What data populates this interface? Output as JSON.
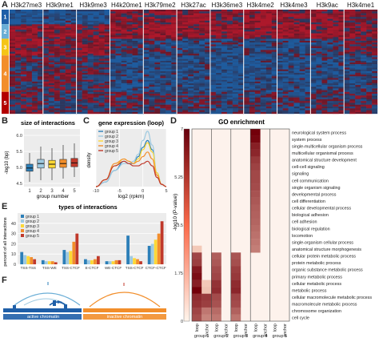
{
  "panel_letters": {
    "a": "A",
    "b": "B",
    "c": "C",
    "d": "D",
    "e": "E",
    "f": "F"
  },
  "colors": {
    "heatmap_high": "#b2182b",
    "heatmap_low": "#1d5fa3",
    "heatmap_mid": "#3a1a2a",
    "group1": "#2c7fb8",
    "group2": "#9ecae1",
    "group3": "#fdd835",
    "group4": "#f28e2b",
    "group5": "#c0392b",
    "go_fill": "#b30000",
    "active_chromatin": "#1f5fa8",
    "inactive_chromatin": "#f28e2b"
  },
  "heatmap": {
    "columns": [
      "H3k27me3",
      "H3k9me1",
      "H3k9me3",
      "H4k20me1",
      "H3k79me2",
      "H3k27ac",
      "H3k36me3",
      "H3k4me2",
      "H3k4me3",
      "H3k9ac",
      "H3k4me1"
    ],
    "groups": [
      "1",
      "2",
      "3",
      "4",
      "5"
    ],
    "group_colors": [
      "#1f5fa8",
      "#6baed6",
      "#f5c518",
      "#f28e2b",
      "#b30000"
    ],
    "group_fracs": [
      0.14,
      0.14,
      0.16,
      0.35,
      0.21
    ],
    "patterns": [
      [
        -0.9,
        -0.6,
        -0.8,
        0.2,
        0.4,
        0.5,
        0.3,
        0.6,
        0.5,
        0.4,
        0.3
      ],
      [
        0.4,
        0.5,
        0.3,
        0.6,
        0.7,
        0.6,
        0.6,
        0.6,
        0.7,
        0.5,
        0.4
      ],
      [
        0.5,
        0.2,
        0.4,
        -0.2,
        -0.3,
        -0.5,
        -0.4,
        -0.4,
        -0.5,
        -0.3,
        0.1
      ],
      [
        -0.2,
        0.1,
        -0.1,
        -0.6,
        -0.5,
        -0.6,
        -0.7,
        -0.6,
        -0.6,
        -0.5,
        -0.4
      ],
      [
        0.1,
        -0.2,
        0.0,
        -0.1,
        -0.2,
        -0.2,
        -0.3,
        -0.2,
        -0.3,
        -0.1,
        0.0
      ]
    ]
  },
  "panel_b": {
    "title": "size of interactions",
    "ylabel": "-log10 (bp)",
    "xlabel": "group number",
    "chart_data": {
      "type": "box",
      "categories": [
        "1",
        "2",
        "3",
        "4",
        "5"
      ],
      "ylim": [
        4.4,
        6.2
      ],
      "yticks": [
        "4.5",
        "5.0",
        "5.5",
        "6.0"
      ],
      "boxes": [
        {
          "min": 4.55,
          "q1": 4.88,
          "median": 4.98,
          "q3": 5.1,
          "max": 5.45
        },
        {
          "min": 4.6,
          "q1": 4.98,
          "median": 5.12,
          "q3": 5.25,
          "max": 5.65
        },
        {
          "min": 4.6,
          "q1": 4.98,
          "median": 5.1,
          "q3": 5.22,
          "max": 5.6
        },
        {
          "min": 4.65,
          "q1": 5.0,
          "median": 5.12,
          "q3": 5.25,
          "max": 5.7
        },
        {
          "min": 4.7,
          "q1": 5.02,
          "median": 5.14,
          "q3": 5.28,
          "max": 5.75
        }
      ]
    }
  },
  "panel_c": {
    "title": "gene expression (loop)",
    "ylabel": "density",
    "xlabel": "log2 (rpkm)",
    "legend": [
      "group 1",
      "group 2",
      "group 3",
      "group 4",
      "group 5"
    ],
    "chart_data": {
      "type": "line",
      "xlim": [
        -10,
        5
      ],
      "xticks": [
        "-10",
        "-5",
        "0",
        "5"
      ],
      "ylim": [
        0,
        0.25
      ],
      "x": [
        -10,
        -8,
        -6,
        -4,
        -3,
        -2,
        -1,
        0,
        1,
        2,
        3,
        4,
        5
      ],
      "series": [
        {
          "name": "group 1",
          "values": [
            0.0,
            0.02,
            0.07,
            0.11,
            0.1,
            0.1,
            0.13,
            0.17,
            0.2,
            0.16,
            0.06,
            0.01,
            0.0
          ]
        },
        {
          "name": "group 2",
          "values": [
            0.0,
            0.02,
            0.07,
            0.1,
            0.1,
            0.11,
            0.14,
            0.2,
            0.24,
            0.18,
            0.06,
            0.01,
            0.0
          ]
        },
        {
          "name": "group 3",
          "values": [
            0.0,
            0.03,
            0.09,
            0.12,
            0.11,
            0.1,
            0.12,
            0.16,
            0.19,
            0.15,
            0.06,
            0.01,
            0.0
          ]
        },
        {
          "name": "group 4",
          "values": [
            0.0,
            0.03,
            0.1,
            0.12,
            0.11,
            0.1,
            0.11,
            0.13,
            0.15,
            0.12,
            0.05,
            0.01,
            0.0
          ]
        },
        {
          "name": "group 5",
          "values": [
            0.0,
            0.03,
            0.09,
            0.11,
            0.1,
            0.09,
            0.09,
            0.1,
            0.11,
            0.09,
            0.04,
            0.01,
            0.0
          ]
        }
      ]
    }
  },
  "panel_d": {
    "title": "GO enrichment",
    "ylabel": "-log10 (P-value)",
    "yticks": [
      "0",
      "1.75",
      "3.5",
      "5.25",
      "7"
    ],
    "column_labels": [
      "loop",
      "anchor",
      "loop",
      "anchor",
      "loop",
      "anchor",
      "loop",
      "anchor",
      "loop",
      "anchor"
    ],
    "group_labels": [
      "group 1",
      "group 2",
      "group 3",
      "group 4",
      "group 5"
    ],
    "terms": [
      "neurological system process",
      "system process",
      "single-multicellular organism process",
      "multicellular organismal process",
      "anatomical structure development",
      "cell-cell signaling",
      "signaling",
      "cell communication",
      "single organism signaling",
      "developmental process",
      "cell differentiation",
      "cellular developmental process",
      "biological adhesion",
      "cell adhesion",
      "biological regulation",
      "locomotion",
      "single-organism cellular process",
      "anatomical structure morphogenesis",
      "cellular protein metabolic process",
      "protein metabolic process",
      "organic substance metabolic process",
      "primary metabolic process",
      "cellular metabolic process",
      "metabolic process",
      "cellular macromolecule metabolic process",
      "macromolecule metabolic process",
      "chromosome organization",
      "cell cycle"
    ],
    "chart_data": {
      "type": "heatmap",
      "ylim": [
        0,
        7
      ],
      "columns": [
        "group 1 loop",
        "group 1 anchor",
        "group 2 loop",
        "group 2 anchor",
        "group 3 loop",
        "group 3 anchor",
        "group 4 loop",
        "group 4 anchor",
        "group 5 loop",
        "group 5 anchor"
      ],
      "values": [
        [
          0,
          0,
          0,
          0,
          0,
          0,
          7.0,
          0,
          0,
          0
        ],
        [
          0,
          0,
          0,
          0,
          0,
          0,
          6.8,
          0,
          0,
          0
        ],
        [
          0,
          0,
          0,
          0,
          0,
          0,
          6.0,
          0,
          0,
          0
        ],
        [
          0,
          0,
          0,
          0,
          0,
          0,
          5.8,
          0,
          0,
          0
        ],
        [
          0,
          0,
          0,
          0,
          0,
          0,
          5.2,
          0,
          0,
          0
        ],
        [
          0,
          0,
          0,
          0,
          0,
          0,
          4.9,
          0,
          0,
          0
        ],
        [
          0,
          0,
          0,
          0,
          0,
          0,
          4.7,
          0,
          0,
          0
        ],
        [
          0,
          0,
          0,
          0,
          0,
          0,
          4.7,
          0,
          0,
          0
        ],
        [
          0,
          0,
          0,
          0,
          0,
          0,
          4.6,
          0,
          0,
          0
        ],
        [
          0,
          0,
          0,
          0,
          0,
          0,
          4.4,
          0,
          0,
          0
        ],
        [
          0,
          0,
          0,
          0,
          0,
          0,
          4.2,
          0,
          0,
          0
        ],
        [
          0,
          0,
          0,
          0,
          0,
          0,
          4.0,
          0,
          0,
          0
        ],
        [
          0,
          0,
          0,
          0,
          0,
          0,
          3.9,
          0,
          0,
          0
        ],
        [
          0,
          0,
          0,
          0,
          0,
          0,
          3.8,
          0,
          0,
          0
        ],
        [
          0,
          0,
          0,
          0,
          0,
          0,
          3.6,
          0,
          0,
          0
        ],
        [
          0,
          0,
          0,
          0,
          0,
          0,
          3.4,
          0,
          0,
          0
        ],
        [
          0,
          0,
          0,
          0,
          0,
          0,
          3.2,
          0,
          0,
          0
        ],
        [
          0.6,
          0,
          0,
          0,
          0,
          0,
          3.0,
          0,
          0,
          0
        ],
        [
          4.8,
          0,
          4.0,
          0,
          4.3,
          0,
          0,
          0,
          0,
          0
        ],
        [
          5.0,
          0,
          4.2,
          0,
          4.5,
          0,
          0,
          0,
          0,
          0
        ],
        [
          6.2,
          0,
          4.6,
          0,
          5.0,
          0,
          0,
          0,
          0,
          0
        ],
        [
          6.6,
          0,
          4.8,
          0,
          5.2,
          0,
          0,
          0,
          0,
          0
        ],
        [
          6.0,
          0.6,
          5.4,
          0,
          5.6,
          0,
          0,
          0,
          0,
          0
        ],
        [
          7.0,
          0.8,
          5.6,
          0,
          5.8,
          0,
          0,
          0,
          0,
          0
        ],
        [
          5.6,
          5.2,
          4.6,
          0,
          4.8,
          0,
          0,
          0,
          0,
          0
        ],
        [
          5.4,
          5.0,
          4.4,
          0,
          4.6,
          0,
          0,
          0,
          0,
          0
        ],
        [
          4.8,
          3.2,
          3.6,
          0,
          3.9,
          0,
          0,
          0,
          0,
          0
        ],
        [
          4.5,
          2.8,
          3.2,
          0,
          3.3,
          0,
          0,
          0,
          0,
          0
        ]
      ]
    }
  },
  "panel_e": {
    "title": "types of interactions",
    "ylabel": "percent of all interactions",
    "legend": [
      "group 1",
      "group 2",
      "group 3",
      "group 4",
      "group 5"
    ],
    "chart_data": {
      "type": "bar",
      "categories": [
        "TSS-TSS",
        "TSS-WE",
        "TSS-CTCF",
        "E-CTCF",
        "WE-CTCF",
        "TSS-CTCF",
        "CTCF-CTCF"
      ],
      "ylim": [
        0,
        50
      ],
      "yticks": [
        "0",
        "10",
        "20",
        "30",
        "40"
      ],
      "series": [
        {
          "name": "group 1",
          "values": [
            12,
            4,
            14,
            5,
            3,
            28,
            18
          ]
        },
        {
          "name": "group 2",
          "values": [
            9,
            3,
            12,
            4,
            3,
            8,
            20
          ]
        },
        {
          "name": "group 3",
          "values": [
            8,
            3,
            13,
            4,
            3,
            6,
            24
          ]
        },
        {
          "name": "group 4",
          "values": [
            7,
            3,
            22,
            5,
            4,
            5,
            30
          ]
        },
        {
          "name": "group 5",
          "values": [
            5,
            2,
            30,
            8,
            4,
            3,
            42
          ]
        }
      ]
    }
  },
  "panel_f": {
    "active_label": "active chromatin",
    "inactive_label": "inactive chromatin"
  }
}
